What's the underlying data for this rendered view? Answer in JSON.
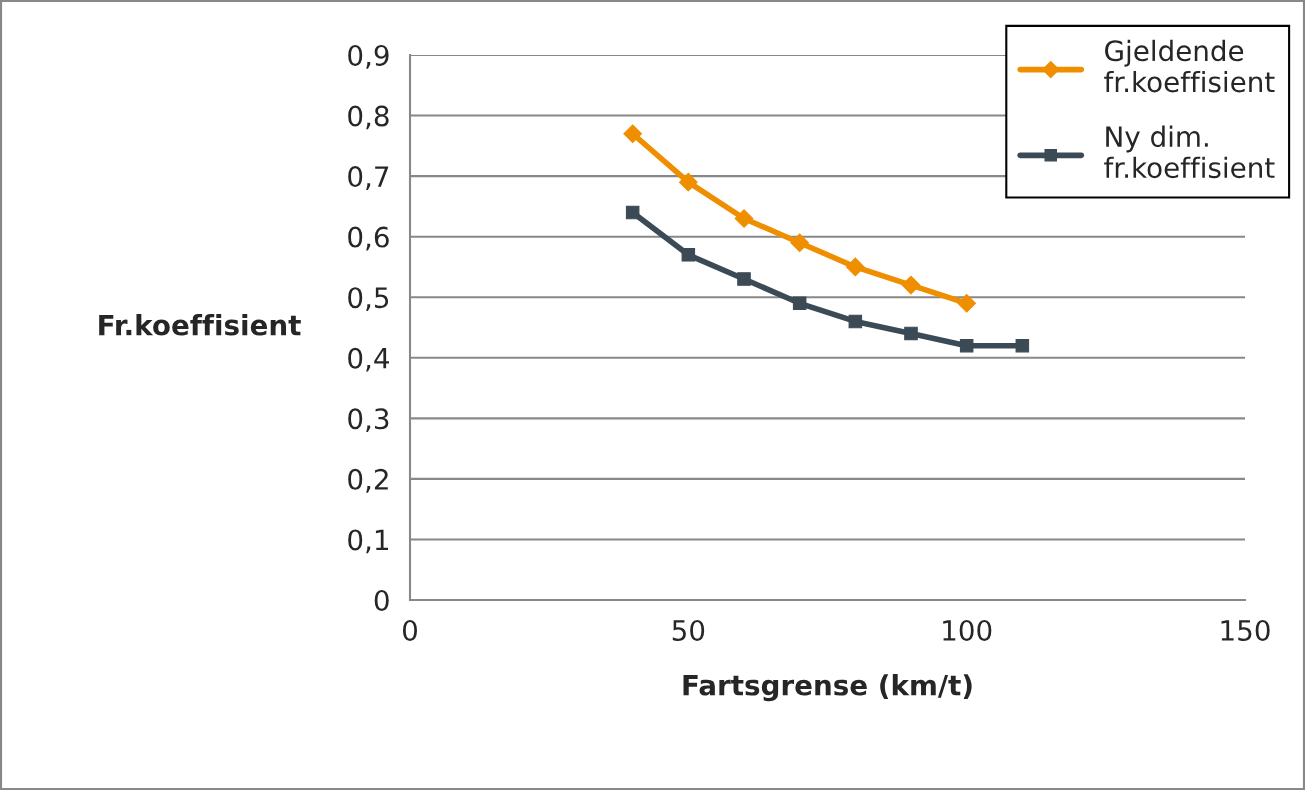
{
  "chart_data": {
    "type": "line",
    "xlabel": "Fartsgrense (km/t)",
    "ylabel": "Fr.koeffisient",
    "x": [
      40,
      50,
      60,
      70,
      80,
      90,
      100,
      110
    ],
    "series": [
      {
        "name": "Gjeldende fr.koeffisient",
        "color": "#ef8f00",
        "marker": "diamond",
        "values": [
          0.77,
          0.69,
          0.63,
          0.59,
          0.55,
          0.52,
          0.49,
          null
        ]
      },
      {
        "name": "Ny dim. fr.koeffisient",
        "color": "#3b4a55",
        "marker": "square",
        "values": [
          0.64,
          0.57,
          0.53,
          0.49,
          0.46,
          0.44,
          0.42,
          0.42
        ]
      }
    ],
    "xlim": [
      0,
      150
    ],
    "xticks": [
      0,
      50,
      100,
      150
    ],
    "ylim": [
      0,
      0.9
    ],
    "yticks": [
      {
        "value": 0,
        "label": "0"
      },
      {
        "value": 0.1,
        "label": "0,1"
      },
      {
        "value": 0.2,
        "label": "0,2"
      },
      {
        "value": 0.3,
        "label": "0,3"
      },
      {
        "value": 0.4,
        "label": "0,4"
      },
      {
        "value": 0.5,
        "label": "0,5"
      },
      {
        "value": 0.6,
        "label": "0,6"
      },
      {
        "value": 0.7,
        "label": "0,7"
      },
      {
        "value": 0.8,
        "label": "0,8"
      },
      {
        "value": 0.9,
        "label": "0,9"
      }
    ],
    "grid": "y",
    "legend": "top right",
    "line_style": "solid"
  }
}
